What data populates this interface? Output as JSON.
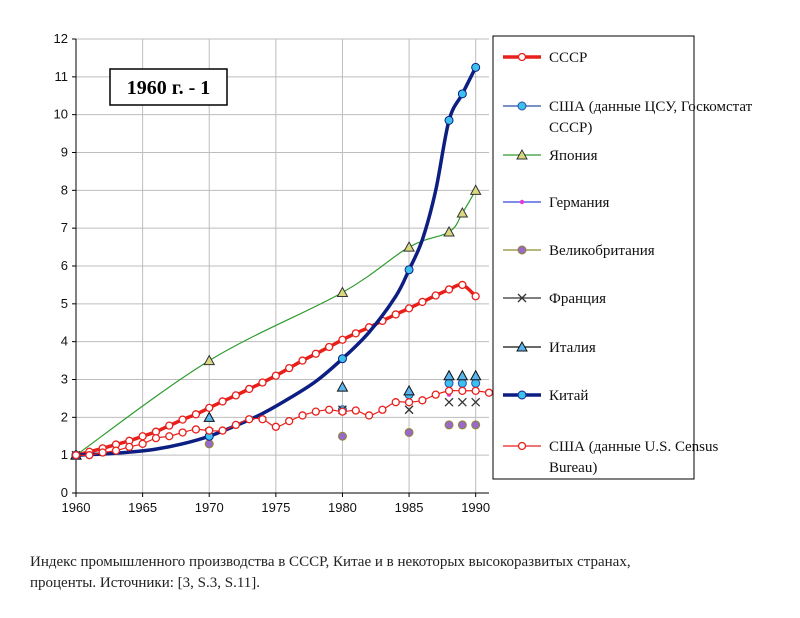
{
  "caption": {
    "line1": "Индекс промышленного производства в СССР, Китае и в некоторых высокоразвитых странах,",
    "line2": "проценты. Источники: [3, S.3, S.11]."
  },
  "chart_data": {
    "type": "line",
    "annotation": "1960 г. - 1",
    "xlim": [
      1960,
      1991
    ],
    "ylim": [
      0,
      12
    ],
    "xticks": [
      1960,
      1965,
      1970,
      1975,
      1980,
      1985,
      1990
    ],
    "yticks": [
      0,
      1,
      2,
      3,
      4,
      5,
      6,
      7,
      8,
      9,
      10,
      11,
      12
    ],
    "grid": true,
    "legend_position": "right",
    "series": [
      {
        "name": "СССР",
        "color": "#e8201c",
        "width": 3.5,
        "marker": "circle-open",
        "marker_color": "#e8201c",
        "x": [
          1960,
          1961,
          1962,
          1963,
          1964,
          1965,
          1966,
          1967,
          1968,
          1969,
          1970,
          1971,
          1972,
          1973,
          1974,
          1975,
          1976,
          1977,
          1978,
          1979,
          1980,
          1981,
          1982,
          1983,
          1984,
          1985,
          1986,
          1987,
          1988,
          1989,
          1990
        ],
        "y": [
          1.0,
          1.09,
          1.18,
          1.28,
          1.38,
          1.5,
          1.62,
          1.78,
          1.94,
          2.08,
          2.25,
          2.42,
          2.58,
          2.75,
          2.92,
          3.1,
          3.3,
          3.5,
          3.68,
          3.86,
          4.05,
          4.22,
          4.38,
          4.55,
          4.72,
          4.88,
          5.05,
          5.22,
          5.38,
          5.5,
          5.2
        ]
      },
      {
        "name": "США (данные ЦСУ, Госкомстат СССР)",
        "color": "#2a4ea8",
        "width": 0,
        "marker": "circle",
        "marker_color": "#3cc0ee",
        "x": [
          1960,
          1970,
          1980,
          1985,
          1988,
          1989,
          1990
        ],
        "y": [
          1.0,
          1.5,
          2.2,
          2.6,
          2.9,
          2.9,
          2.9
        ]
      },
      {
        "name": "Япония",
        "color": "#2e9a2e",
        "width": 1.2,
        "marker": "triangle-open",
        "marker_color": "#d8d880",
        "x": [
          1960,
          1970,
          1980,
          1985,
          1988,
          1989,
          1990
        ],
        "y": [
          1.0,
          3.5,
          5.3,
          6.5,
          6.9,
          7.4,
          8.0
        ]
      },
      {
        "name": "Германия",
        "color": "#3344dd",
        "width": 0,
        "marker": "dot",
        "marker_color": "#e63ad8",
        "x": [
          1960,
          1970,
          1980,
          1985,
          1988,
          1989,
          1990
        ],
        "y": [
          1.0,
          1.6,
          2.15,
          2.4,
          2.6,
          2.65,
          2.7
        ]
      },
      {
        "name": "Великобритания",
        "color": "#8a8a30",
        "width": 0,
        "marker": "circle",
        "marker_color": "#9a68c8",
        "x": [
          1960,
          1970,
          1980,
          1985,
          1988,
          1989,
          1990
        ],
        "y": [
          1.0,
          1.3,
          1.5,
          1.6,
          1.8,
          1.8,
          1.8
        ]
      },
      {
        "name": "Франция",
        "color": "#333333",
        "width": 0,
        "marker": "x",
        "marker_color": "#333333",
        "x": [
          1960,
          1970,
          1980,
          1985,
          1988,
          1989,
          1990
        ],
        "y": [
          1.0,
          1.6,
          2.2,
          2.2,
          2.4,
          2.4,
          2.4
        ]
      },
      {
        "name": "Италия",
        "color": "#111111",
        "width": 0,
        "marker": "triangle",
        "marker_color": "#5ab4ee",
        "x": [
          1960,
          1970,
          1980,
          1985,
          1988,
          1989,
          1990
        ],
        "y": [
          1.0,
          2.0,
          2.8,
          2.7,
          3.1,
          3.1,
          3.1
        ]
      },
      {
        "name": "Китай",
        "color": "#0d1e82",
        "width": 3.5,
        "marker": "circle",
        "marker_color": "#3cc0ee",
        "x": [
          1960,
          1970,
          1980,
          1985,
          1988,
          1989,
          1990
        ],
        "y": [
          1.0,
          1.5,
          3.55,
          5.9,
          9.85,
          10.55,
          11.25
        ],
        "curve": [
          [
            1960,
            1.0
          ],
          [
            1962,
            1.03
          ],
          [
            1964,
            1.08
          ],
          [
            1966,
            1.16
          ],
          [
            1968,
            1.3
          ],
          [
            1970,
            1.5
          ],
          [
            1972,
            1.78
          ],
          [
            1974,
            2.1
          ],
          [
            1976,
            2.5
          ],
          [
            1978,
            2.95
          ],
          [
            1980,
            3.55
          ],
          [
            1982,
            4.25
          ],
          [
            1984,
            5.2
          ],
          [
            1985,
            5.9
          ],
          [
            1986,
            6.7
          ],
          [
            1987,
            8.0
          ],
          [
            1988,
            9.85
          ],
          [
            1989,
            10.55
          ],
          [
            1990,
            11.25
          ]
        ]
      },
      {
        "name": "США (данные U.S. Census Bureau)",
        "color": "#e8201c",
        "width": 1.2,
        "marker": "circle-open",
        "marker_color": "#e8201c",
        "x": [
          1960,
          1961,
          1962,
          1963,
          1964,
          1965,
          1966,
          1967,
          1968,
          1969,
          1970,
          1971,
          1972,
          1973,
          1974,
          1975,
          1976,
          1977,
          1978,
          1979,
          1980,
          1981,
          1982,
          1983,
          1984,
          1985,
          1986,
          1987,
          1988,
          1989,
          1990,
          1991
        ],
        "y": [
          1.0,
          1.0,
          1.07,
          1.12,
          1.22,
          1.3,
          1.45,
          1.5,
          1.6,
          1.68,
          1.65,
          1.65,
          1.8,
          1.95,
          1.95,
          1.75,
          1.9,
          2.05,
          2.15,
          2.2,
          2.15,
          2.18,
          2.05,
          2.2,
          2.4,
          2.4,
          2.45,
          2.6,
          2.7,
          2.7,
          2.7,
          2.65
        ]
      }
    ]
  }
}
